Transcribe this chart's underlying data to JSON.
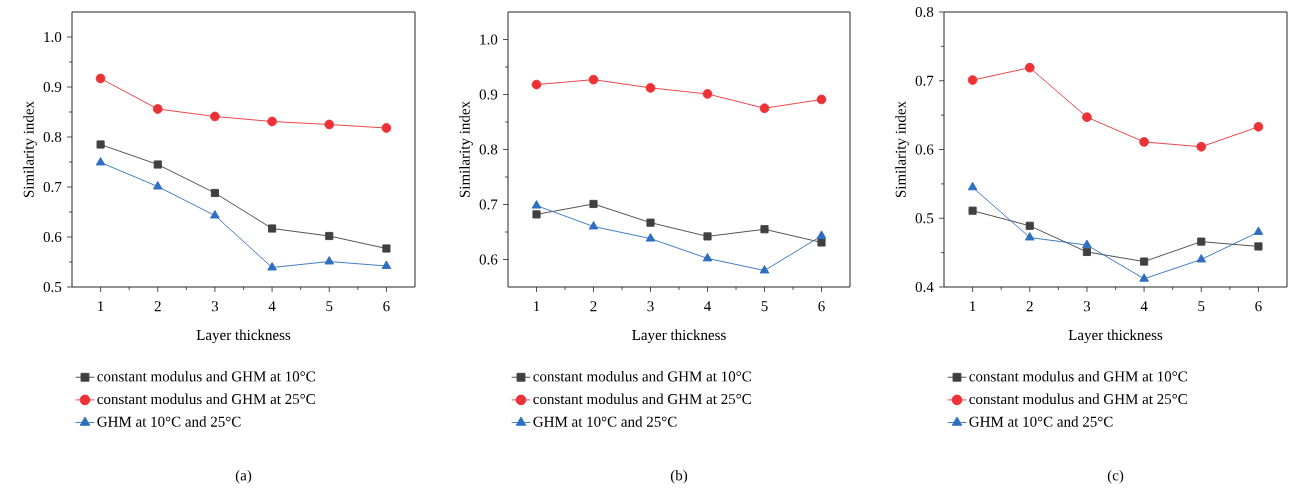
{
  "chart_data": [
    {
      "type": "line",
      "xlabel": "Layer thickness",
      "ylabel": "Similarity index",
      "annotations": [
        "(a)"
      ],
      "legend": "bottom",
      "x": [
        1,
        2,
        3,
        4,
        5,
        6
      ],
      "xlim": [
        0.5,
        6.5
      ],
      "xticks": [
        1,
        2,
        3,
        4,
        5,
        6
      ],
      "ylim": [
        0.5,
        1.05
      ],
      "yticks": [
        0.5,
        0.6,
        0.7,
        0.8,
        0.9,
        {
          "value": 1,
          "label": "1.0"
        }
      ],
      "series": [
        {
          "name": "constant modulus and GHM at 10°C",
          "color": "#404040",
          "marker": "square",
          "values": [
            0.785,
            0.745,
            0.688,
            0.617,
            0.602,
            0.577
          ]
        },
        {
          "name": "constant modulus and GHM at 25°C",
          "color": "#ec3237",
          "marker": "circle",
          "values": [
            0.917,
            0.856,
            0.841,
            0.831,
            0.825,
            0.818
          ]
        },
        {
          "name": "GHM at 10°C and 25°C",
          "color": "#2e6fc0",
          "marker": "triangle",
          "values": [
            0.749,
            0.701,
            0.643,
            0.539,
            0.551,
            0.542
          ]
        }
      ]
    },
    {
      "type": "line",
      "xlabel": "Layer thickness",
      "ylabel": "Similarity index",
      "annotations": [
        "(b)"
      ],
      "legend": "bottom",
      "x": [
        1,
        2,
        3,
        4,
        5,
        6
      ],
      "xlim": [
        0.5,
        6.5
      ],
      "xticks": [
        1,
        2,
        3,
        4,
        5,
        6
      ],
      "ylim": [
        0.55,
        1.05
      ],
      "yticks": [
        0.6,
        0.7,
        0.8,
        0.9,
        {
          "value": 1,
          "label": "1.0"
        }
      ],
      "series": [
        {
          "name": "constant modulus and GHM at 10°C",
          "color": "#404040",
          "marker": "square",
          "values": [
            0.682,
            0.701,
            0.667,
            0.642,
            0.655,
            0.631
          ]
        },
        {
          "name": "constant modulus and GHM at 25°C",
          "color": "#ec3237",
          "marker": "circle",
          "values": [
            0.918,
            0.927,
            0.912,
            0.901,
            0.875,
            0.891
          ]
        },
        {
          "name": "GHM at 10°C and 25°C",
          "color": "#2e6fc0",
          "marker": "triangle",
          "values": [
            0.698,
            0.66,
            0.638,
            0.602,
            0.58,
            0.643
          ]
        }
      ]
    },
    {
      "type": "line",
      "xlabel": "Layer thickness",
      "ylabel": "Similarity index",
      "annotations": [
        "(c)"
      ],
      "legend": "bottom",
      "x": [
        1,
        2,
        3,
        4,
        5,
        6
      ],
      "xlim": [
        0.5,
        6.5
      ],
      "xticks": [
        1,
        2,
        3,
        4,
        5,
        6
      ],
      "ylim": [
        0.4,
        0.8
      ],
      "yticks": [
        0.4,
        0.5,
        0.6,
        0.7,
        0.8
      ],
      "series": [
        {
          "name": "constant modulus and GHM at 10°C",
          "color": "#404040",
          "marker": "square",
          "values": [
            0.511,
            0.489,
            0.451,
            0.437,
            0.466,
            0.459
          ]
        },
        {
          "name": "constant modulus and GHM at 25°C",
          "color": "#ec3237",
          "marker": "circle",
          "values": [
            0.701,
            0.719,
            0.647,
            0.611,
            0.604,
            0.633
          ]
        },
        {
          "name": "GHM at 10°C and 25°C",
          "color": "#2e6fc0",
          "marker": "triangle",
          "values": [
            0.545,
            0.472,
            0.461,
            0.412,
            0.44,
            0.48
          ]
        }
      ]
    }
  ]
}
